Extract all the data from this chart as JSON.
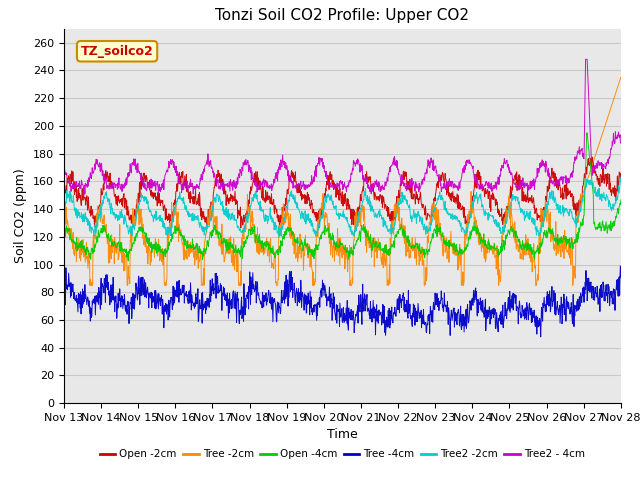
{
  "title": "Tonzi Soil CO2 Profile: Upper CO2",
  "ylabel": "Soil CO2 (ppm)",
  "xlabel": "Time",
  "legend_label": "TZ_soilco2",
  "ylim": [
    0,
    270
  ],
  "yticks": [
    0,
    20,
    40,
    60,
    80,
    100,
    120,
    140,
    160,
    180,
    200,
    220,
    240,
    260
  ],
  "series": [
    {
      "label": "Open -2cm",
      "color": "#cc0000",
      "base": 148,
      "amp": 12,
      "amp2": 6,
      "noise": 3,
      "phase": 0.0
    },
    {
      "label": "Tree -2cm",
      "color": "#ff8800",
      "base": 118,
      "amp": 14,
      "amp2": 7,
      "noise": 5,
      "phase": 0.5
    },
    {
      "label": "Open -4cm",
      "color": "#00cc00",
      "base": 116,
      "amp": 7,
      "amp2": 3,
      "noise": 2,
      "phase": 0.3
    },
    {
      "label": "Tree -4cm",
      "color": "#0000cc",
      "base": 76,
      "amp": 6,
      "amp2": 3,
      "noise": 5,
      "phase": 0.2
    },
    {
      "label": "Tree2 -2cm",
      "color": "#00cccc",
      "base": 136,
      "amp": 10,
      "amp2": 5,
      "noise": 2,
      "phase": 0.1
    },
    {
      "label": "Tree2 - 4cm",
      "color": "#cc00cc",
      "base": 162,
      "amp": 8,
      "amp2": 4,
      "noise": 2,
      "phase": 0.7
    }
  ],
  "xtick_labels": [
    "Nov 13",
    "Nov 14",
    "Nov 15",
    "Nov 16",
    "Nov 17",
    "Nov 18",
    "Nov 19",
    "Nov 20",
    "Nov 21",
    "Nov 22",
    "Nov 23",
    "Nov 24",
    "Nov 25",
    "Nov 26",
    "Nov 27",
    "Nov 28"
  ],
  "n_days": 15,
  "points_per_day": 96,
  "bg_color": "#ffffff",
  "plot_bg": "#e8e8e8",
  "grid_color": "#c8c8c8",
  "title_fontsize": 11,
  "axis_fontsize": 9,
  "tick_fontsize": 8,
  "legend_fontsize": 9
}
